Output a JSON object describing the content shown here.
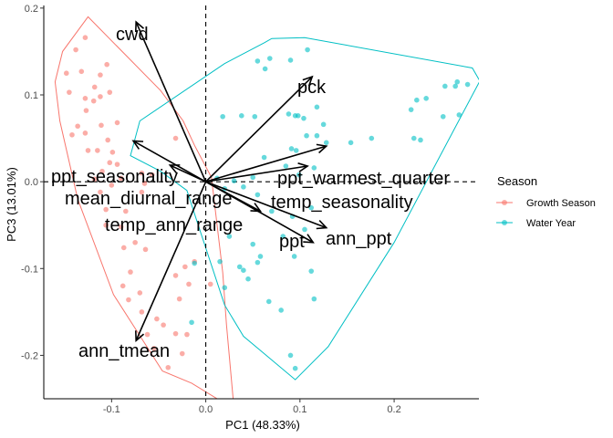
{
  "chart_data": {
    "type": "scatter",
    "title": "",
    "xlabel": "PC1 (48.33%)",
    "ylabel": "PC3 (13.01%)",
    "xlim": [
      -0.172,
      0.29
    ],
    "ylim": [
      -0.25,
      0.203
    ],
    "x_ticks": [
      -0.1,
      0.0,
      0.1,
      0.2
    ],
    "x_tick_labels": [
      "-0.1",
      "0.0",
      "0.1",
      "0.2"
    ],
    "y_ticks": [
      -0.2,
      -0.1,
      0.0,
      0.1,
      0.2
    ],
    "y_tick_labels": [
      "-0.2",
      "-0.1",
      "0.0",
      "0.1",
      "0.2"
    ],
    "grid": false,
    "legend": {
      "title": "Season",
      "position": "right",
      "entries": [
        {
          "label": "Growth Season",
          "color": "#F8766D"
        },
        {
          "label": "Water Year",
          "color": "#00BFC4"
        }
      ]
    },
    "reference_lines": {
      "x": 0,
      "y": 0,
      "style": "dashed"
    },
    "series": [
      {
        "name": "Growth Season",
        "color": "#F8766D",
        "points": [
          [
            -0.128,
            0.166
          ],
          [
            -0.138,
            0.152
          ],
          [
            -0.148,
            0.125
          ],
          [
            -0.132,
            0.127
          ],
          [
            -0.112,
            0.123
          ],
          [
            -0.105,
            0.135
          ],
          [
            -0.118,
            0.109
          ],
          [
            -0.145,
            0.103
          ],
          [
            -0.128,
            0.096
          ],
          [
            -0.119,
            0.093
          ],
          [
            -0.102,
            0.103
          ],
          [
            -0.112,
            0.098
          ],
          [
            -0.127,
            0.082
          ],
          [
            -0.136,
            0.064
          ],
          [
            -0.142,
            0.054
          ],
          [
            -0.128,
            0.056
          ],
          [
            -0.111,
            0.065
          ],
          [
            -0.094,
            0.068
          ],
          [
            -0.104,
            0.048
          ],
          [
            -0.115,
            0.036
          ],
          [
            -0.099,
            0.034
          ],
          [
            -0.125,
            0.036
          ],
          [
            -0.102,
            0.022
          ],
          [
            -0.11,
            0.012
          ],
          [
            -0.094,
            0.02
          ],
          [
            -0.118,
            0.003
          ],
          [
            -0.09,
            0.004
          ],
          [
            -0.112,
            -0.012
          ],
          [
            -0.1,
            -0.004
          ],
          [
            -0.068,
            0.01
          ],
          [
            -0.057,
            0.008
          ],
          [
            -0.065,
            -0.002
          ],
          [
            -0.032,
            0.05
          ],
          [
            -0.068,
            -0.012
          ],
          [
            -0.085,
            -0.034
          ],
          [
            -0.106,
            -0.032
          ],
          [
            -0.09,
            -0.052
          ],
          [
            -0.106,
            -0.05
          ],
          [
            -0.075,
            -0.07
          ],
          [
            -0.087,
            -0.076
          ],
          [
            -0.064,
            -0.078
          ],
          [
            -0.08,
            -0.104
          ],
          [
            -0.088,
            -0.12
          ],
          [
            -0.07,
            -0.128
          ],
          [
            -0.082,
            -0.136
          ],
          [
            -0.068,
            -0.15
          ],
          [
            -0.052,
            -0.158
          ],
          [
            -0.062,
            -0.176
          ],
          [
            -0.055,
            -0.192
          ],
          [
            -0.045,
            -0.165
          ],
          [
            -0.032,
            -0.175
          ],
          [
            -0.02,
            -0.176
          ],
          [
            -0.025,
            -0.198
          ],
          [
            -0.04,
            -0.214
          ],
          [
            -0.028,
            -0.135
          ],
          [
            -0.018,
            -0.118
          ],
          [
            -0.012,
            -0.092
          ],
          [
            -0.032,
            -0.108
          ],
          [
            -0.022,
            -0.098
          ],
          [
            0.005,
            -0.118
          ]
        ]
      },
      {
        "name": "Water Year",
        "color": "#00BFC4",
        "points": [
          [
            0.108,
            0.152
          ],
          [
            0.068,
            0.142
          ],
          [
            0.055,
            0.139
          ],
          [
            0.09,
            0.14
          ],
          [
            0.063,
            0.13
          ],
          [
            0.018,
            0.075
          ],
          [
            0.038,
            0.076
          ],
          [
            0.052,
            0.075
          ],
          [
            0.088,
            0.078
          ],
          [
            0.098,
            0.076
          ],
          [
            0.104,
            0.073
          ],
          [
            0.118,
            0.086
          ],
          [
            0.095,
            0.076
          ],
          [
            0.118,
            0.053
          ],
          [
            0.125,
            0.066
          ],
          [
            0.107,
            0.053
          ],
          [
            0.128,
            0.045
          ],
          [
            0.154,
            0.045
          ],
          [
            0.176,
            0.05
          ],
          [
            0.224,
            0.094
          ],
          [
            0.218,
            0.083
          ],
          [
            0.234,
            0.096
          ],
          [
            0.254,
            0.11
          ],
          [
            0.265,
            0.11
          ],
          [
            0.267,
            0.115
          ],
          [
            0.278,
            0.112
          ],
          [
            0.252,
            0.075
          ],
          [
            0.269,
            0.077
          ],
          [
            0.221,
            0.05
          ],
          [
            0.228,
            0.048
          ],
          [
            0.062,
            0.028
          ],
          [
            0.091,
            0.038
          ],
          [
            0.096,
            0.036
          ],
          [
            0.085,
            0.018
          ],
          [
            0.115,
            0.016
          ],
          [
            0.099,
            0.008
          ],
          [
            0.012,
            0.004
          ],
          [
            0.03,
            0.001
          ],
          [
            0.05,
            0.005
          ],
          [
            0.04,
            -0.006
          ],
          [
            0.055,
            -0.015
          ],
          [
            0.02,
            -0.008
          ],
          [
            0.07,
            -0.034
          ],
          [
            0.092,
            -0.04
          ],
          [
            0.112,
            -0.03
          ],
          [
            0.105,
            -0.055
          ],
          [
            0.082,
            -0.063
          ],
          [
            0.05,
            -0.072
          ],
          [
            0.025,
            -0.063
          ],
          [
            0.058,
            -0.086
          ],
          [
            0.094,
            -0.086
          ],
          [
            0.112,
            -0.103
          ],
          [
            0.055,
            -0.093
          ],
          [
            0.036,
            -0.098
          ],
          [
            -0.012,
            -0.094
          ],
          [
            0.015,
            -0.092
          ],
          [
            0.04,
            -0.102
          ],
          [
            0.02,
            -0.122
          ],
          [
            0.045,
            -0.112
          ],
          [
            0.115,
            -0.135
          ],
          [
            0.067,
            -0.138
          ],
          [
            0.09,
            -0.2
          ],
          [
            0.095,
            -0.215
          ],
          [
            0.08,
            -0.148
          ],
          [
            -0.015,
            -0.162
          ]
        ]
      }
    ],
    "hulls": [
      {
        "series": "Growth Season",
        "points": [
          [
            -0.125,
            0.19
          ],
          [
            -0.048,
            0.105
          ],
          [
            -0.024,
            0.07
          ],
          [
            -0.012,
            0.042
          ],
          [
            0.006,
            0.005
          ],
          [
            0.018,
            -0.105
          ],
          [
            0.022,
            -0.165
          ],
          [
            0.03,
            -0.262
          ],
          [
            -0.015,
            -0.232
          ],
          [
            -0.046,
            -0.218
          ],
          [
            -0.098,
            -0.13
          ],
          [
            -0.136,
            -0.02
          ],
          [
            -0.155,
            0.07
          ],
          [
            -0.16,
            0.115
          ],
          [
            -0.152,
            0.15
          ]
        ]
      },
      {
        "series": "Water Year",
        "points": [
          [
            0.07,
            0.165
          ],
          [
            0.105,
            0.166
          ],
          [
            0.283,
            0.131
          ],
          [
            0.291,
            0.116
          ],
          [
            0.2,
            -0.07
          ],
          [
            0.13,
            -0.19
          ],
          [
            0.095,
            -0.228
          ],
          [
            0.04,
            -0.178
          ],
          [
            0.02,
            -0.142
          ],
          [
            -0.008,
            -0.05
          ],
          [
            -0.02,
            -0.01
          ],
          [
            -0.048,
            0.012
          ],
          [
            -0.08,
            0.03
          ],
          [
            -0.07,
            0.07
          ],
          [
            0.02,
            0.136
          ],
          [
            0.062,
            0.16
          ]
        ]
      }
    ],
    "loadings": [
      {
        "label": "cwd",
        "x": -0.074,
        "y": 0.184
      },
      {
        "label": "pck",
        "x": 0.113,
        "y": 0.121
      },
      {
        "label": "ppt_warmest_quarter",
        "x": 0.128,
        "y": 0.041
      },
      {
        "label": "ppt_seasonality",
        "x": -0.077,
        "y": 0.047
      },
      {
        "label": "mean_diurnal_range",
        "x": -0.038,
        "y": 0.019
      },
      {
        "label": "temp_seasonality",
        "x": 0.108,
        "y": 0.018
      },
      {
        "label": "temp_ann_range",
        "x": 0.058,
        "y": -0.034
      },
      {
        "label": "ann_ppt",
        "x": 0.128,
        "y": -0.053
      },
      {
        "label": "ppt",
        "x": 0.114,
        "y": -0.07
      },
      {
        "label": "ann_tmean",
        "x": -0.074,
        "y": -0.183
      }
    ]
  }
}
